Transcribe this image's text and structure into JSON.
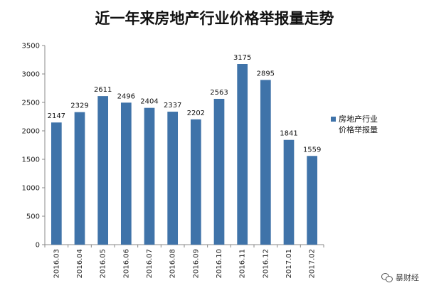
{
  "chart_data": {
    "type": "bar",
    "title": "近一年来房地产行业价格举报量走势",
    "categories": [
      "2016.03",
      "2016.04",
      "2016.05",
      "2016.06",
      "2016.07",
      "2016.08",
      "2016.09",
      "2016.10",
      "2016.11",
      "2016.12",
      "2017.01",
      "2017.02"
    ],
    "series": [
      {
        "name": "房地产行业价格举报量",
        "legend_lines": [
          "房地产行业",
          "价格举报量"
        ],
        "values": [
          2147,
          2329,
          2611,
          2496,
          2404,
          2337,
          2202,
          2563,
          3175,
          2895,
          1841,
          1559
        ]
      }
    ],
    "ylim": [
      0,
      3500
    ],
    "yticks": [
      0,
      500,
      1000,
      1500,
      2000,
      2500,
      3000,
      3500
    ],
    "xlabel": "",
    "ylabel": "",
    "grid": false,
    "legend_position": "right",
    "bar_color": "#3F73A9"
  },
  "watermark": {
    "text": "暴财经",
    "icon": "wechat-icon"
  }
}
